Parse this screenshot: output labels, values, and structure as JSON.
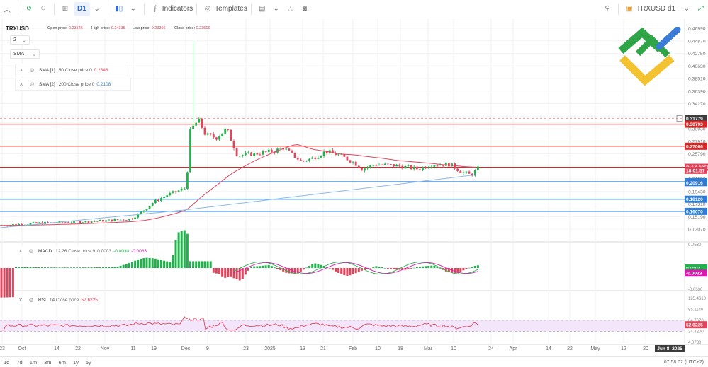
{
  "toolbar": {
    "interval": "D1",
    "indicators_label": "Indicators",
    "templates_label": "Templates",
    "symbol_label": "TRXUSD d1"
  },
  "legend": {
    "symbol": "TRXUSD",
    "open_label": "Open price:",
    "open": "0.23546",
    "high_label": "High price:",
    "high": "0.24335",
    "low_label": "Low price:",
    "low": "0.23366",
    "close_label": "Close price:",
    "close": "0.23516",
    "chart_type_value": "2",
    "ma_type_value": "SMA"
  },
  "indicators": [
    {
      "name": "SMA [1]",
      "params": "50 Close price 0",
      "value": "0.2348",
      "color": "#e0455c"
    },
    {
      "name": "SMA [2]",
      "params": "200 Close price 0",
      "value": "0.2108",
      "color": "#2f7cd5"
    }
  ],
  "macd": {
    "name": "MACD",
    "params": "12 26 Close price 9",
    "v1": "0.0003",
    "v2": "-0.0030",
    "v3": "-0.0033"
  },
  "rsi": {
    "name": "RSI",
    "params": "14 Close price",
    "value": "52.6225"
  },
  "price_axis": [
    "0.46990",
    "0.44870",
    "0.42750",
    "0.40630",
    "0.38510",
    "0.36390",
    "0.34270",
    "0.32150",
    "0.30030",
    "0.27910",
    "0.25790",
    "0.23670",
    "0.21550",
    "0.19430",
    "0.17310",
    "0.15190",
    "0.13070"
  ],
  "price_tags": [
    {
      "label": "0.31779",
      "price": 0.31779,
      "bg": "#3c3c3c"
    },
    {
      "label": "0.30793",
      "price": 0.30793,
      "bg": "#d62828"
    },
    {
      "label": "0.27066",
      "price": 0.27066,
      "bg": "#d62828"
    },
    {
      "label": "Bid 0.23516",
      "price": 0.23516,
      "bg": "#e0455c"
    },
    {
      "label": "18:01:57",
      "price": 0.23,
      "bg": "#e0455c"
    },
    {
      "label": "0.2108",
      "price": 0.2108,
      "bg": "#2f7cd5"
    },
    {
      "label": "0.20916",
      "price": 0.20916,
      "bg": "#2f7cd5"
    },
    {
      "label": "0.18120",
      "price": 0.1812,
      "bg": "#2f7cd5"
    },
    {
      "label": "0.16070",
      "price": 0.1607,
      "bg": "#2f7cd5"
    }
  ],
  "macd_axis": [
    "0.0530",
    "0.0000",
    "-0.0530"
  ],
  "macd_tags": [
    {
      "label": "0.0003",
      "value": 0.0003,
      "bg": "#22b24c"
    },
    {
      "label": "-0.0030",
      "value": -0.003,
      "bg": "#22b24c"
    },
    {
      "label": "-0.0033",
      "value": -0.0033,
      "bg": "#d81bb0"
    }
  ],
  "rsi_axis": [
    "125.4610",
    "95.1140",
    "64.7670",
    "34.4200",
    "4.0730"
  ],
  "rsi_tag": {
    "label": "52.6225",
    "value": 52.6225,
    "bg": "#e0455c"
  },
  "time_axis": [
    "23",
    "Oct",
    "14",
    "22",
    "Nov",
    "11",
    "19",
    "Dec",
    "9",
    "23",
    "2025",
    "13",
    "21",
    "Feb",
    "10",
    "18",
    "Mar",
    "10",
    "24",
    "Apr",
    "14",
    "22",
    "May",
    "12",
    "20"
  ],
  "time_tag": "Jun 8, 2025",
  "ranges": [
    "1d",
    "7d",
    "1m",
    "3m",
    "6m",
    "1y",
    "5y"
  ],
  "clock": "07:58:02 (UTC+2)",
  "colors": {
    "up": "#22b24c",
    "down": "#e0455c",
    "sma50": "#e0455c",
    "sma200": "#8cb8e8",
    "hline_red": "#d62828",
    "hline_blue": "#2f7cd5"
  }
}
